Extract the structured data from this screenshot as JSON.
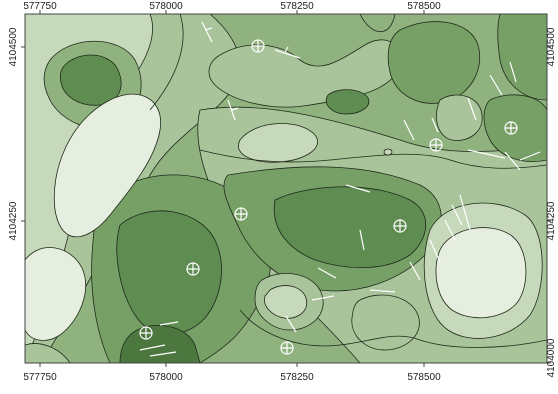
{
  "map": {
    "type": "contour",
    "x_ticks": [
      "577750",
      "578000",
      "578250",
      "578500"
    ],
    "y_ticks_left": [
      "4104500",
      "4104250"
    ],
    "y_ticks_right": [
      "4104500",
      "4104250",
      "4104000"
    ],
    "colors": {
      "level_1": "#e6eee0",
      "level_2": "#c6d9ba",
      "level_3": "#a9c49a",
      "level_4": "#8fb27f",
      "level_5": "#77a066",
      "level_6": "#5f8c51",
      "level_7": "#4c7840",
      "contour_line": "#1f2a1a",
      "fault_line": "#ffffff",
      "frame": "#444444"
    },
    "station_marker_icon": "circle-crosshair-icon",
    "station_count": 8
  }
}
